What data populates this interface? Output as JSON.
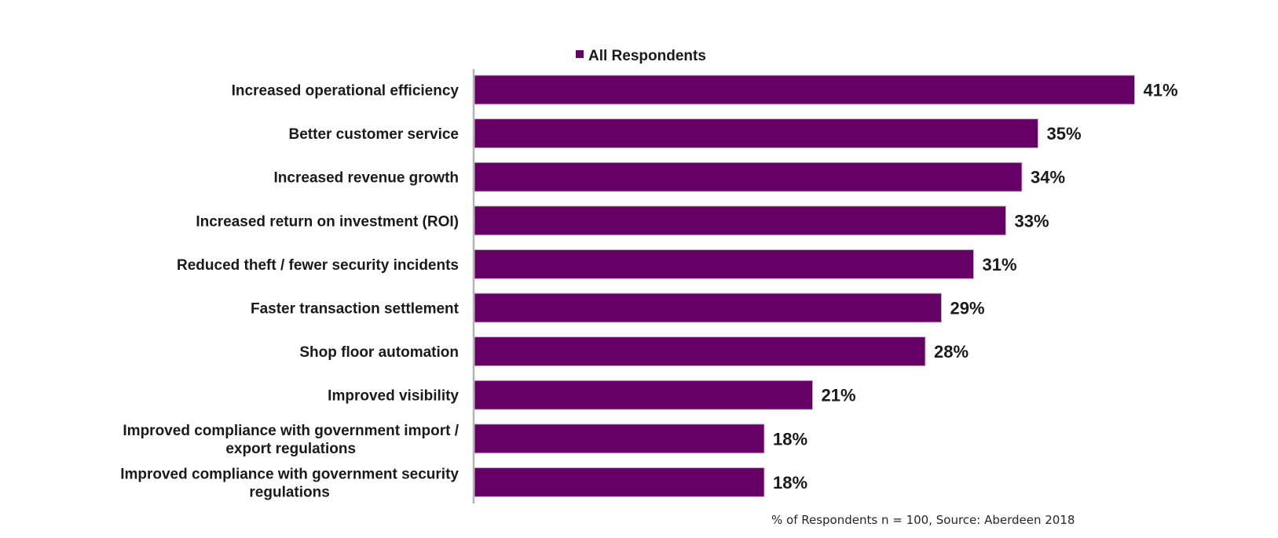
{
  "chart_data": {
    "type": "bar",
    "orientation": "horizontal",
    "title": "",
    "xlabel": "",
    "ylabel": "",
    "xlim": [
      0,
      41
    ],
    "grid": false,
    "legend": {
      "placement": "top",
      "entries": [
        "All Respondents"
      ]
    },
    "categories": [
      "Increased operational efficiency",
      "Better customer service",
      "Increased revenue growth",
      "Increased return on investment (ROI)",
      "Reduced theft / fewer security incidents",
      "Faster transaction settlement",
      "Shop floor automation",
      "Improved visibility",
      "Improved compliance with government import / export regulations",
      "Improved compliance with government security regulations"
    ],
    "category_lines": [
      [
        "Increased operational efficiency"
      ],
      [
        "Better customer service"
      ],
      [
        "Increased revenue growth"
      ],
      [
        "Increased return on investment (ROI)"
      ],
      [
        "Reduced theft / fewer security incidents"
      ],
      [
        "Faster transaction settlement"
      ],
      [
        "Shop floor automation"
      ],
      [
        "Improved visibility"
      ],
      [
        "Improved compliance with government import /",
        "export regulations"
      ],
      [
        "Improved compliance with government security",
        "regulations"
      ]
    ],
    "series": [
      {
        "name": "All Respondents",
        "color": "#660066",
        "values": [
          41,
          35,
          34,
          33,
          31,
          29,
          28,
          21,
          18,
          18
        ],
        "labels": [
          "41%",
          "35%",
          "34%",
          "33%",
          "31%",
          "29%",
          "28%",
          "21%",
          "18%",
          "18%"
        ]
      }
    ],
    "value_unit": "%",
    "footnote": "% of Respondents n = 100, Source: Aberdeen 2018"
  },
  "colors": {
    "bar": "#660066",
    "axis": "#b3b3b3",
    "text": "#1a1a1a"
  }
}
